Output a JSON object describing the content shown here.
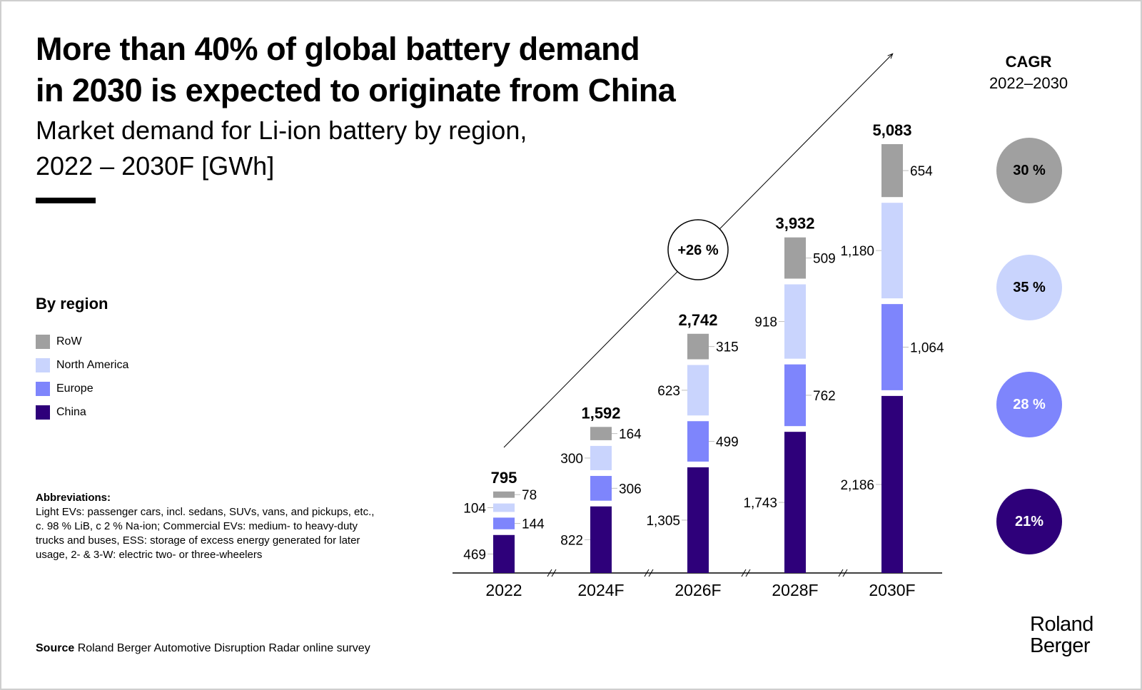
{
  "title_lines": [
    "More than 40% of global battery demand",
    "in 2030 is expected to originate from China"
  ],
  "subtitle_lines": [
    "Market demand for Li-ion battery by region,",
    "2022 – 2030F [GWh]"
  ],
  "legend": {
    "title": "By region",
    "items": [
      {
        "label": "RoW",
        "color": "#a0a0a0"
      },
      {
        "label": "North America",
        "color": "#c9d4fd"
      },
      {
        "label": "Europe",
        "color": "#7e85fc"
      },
      {
        "label": "China",
        "color": "#2e007a"
      }
    ]
  },
  "abbreviations": {
    "title": "Abbreviations:",
    "text": "Light EVs: passenger cars, incl. sedans, SUVs, vans, and pickups, etc., c. 98 % LiB, c 2 % Na-ion; Commercial EVs: medium- to heavy-duty trucks and buses, ESS: storage of excess energy generated for later usage, 2- & 3-W: electric two- or three-wheelers"
  },
  "source": {
    "label": "Source",
    "text": "Roland Berger Automotive Disruption Radar online survey"
  },
  "logo": {
    "line1": "Roland",
    "line2": "Berger"
  },
  "cagr": {
    "title": "CAGR",
    "period": "2022–2030",
    "items": [
      {
        "region": "RoW",
        "value": "30 %",
        "color": "#a0a0a0",
        "text_color": "#000000"
      },
      {
        "region": "North America",
        "value": "35 %",
        "color": "#c9d4fd",
        "text_color": "#000000"
      },
      {
        "region": "Europe",
        "value": "28 %",
        "color": "#7e85fc",
        "text_color": "#ffffff"
      },
      {
        "region": "China",
        "value": "21%",
        "color": "#2e007a",
        "text_color": "#ffffff"
      }
    ]
  },
  "chart_data": {
    "type": "bar",
    "stacked": true,
    "title": "Market demand for Li-ion battery by region, 2022 – 2030F [GWh]",
    "xlabel": "",
    "ylabel": "GWh",
    "categories": [
      "2022",
      "2024F",
      "2026F",
      "2028F",
      "2030F"
    ],
    "series": [
      {
        "name": "China",
        "color": "#2e007a",
        "values": [
          469,
          822,
          1305,
          1743,
          2186
        ],
        "labels": [
          "469",
          "822",
          "1,305",
          "1,743",
          "2,186"
        ],
        "label_side": "left"
      },
      {
        "name": "Europe",
        "color": "#7e85fc",
        "values": [
          144,
          306,
          499,
          762,
          1064
        ],
        "labels": [
          "144",
          "306",
          "499",
          "762",
          "1,064"
        ],
        "label_side": "right"
      },
      {
        "name": "North America",
        "color": "#c9d4fd",
        "values": [
          104,
          300,
          623,
          918,
          1180
        ],
        "labels": [
          "104",
          "300",
          "623",
          "918",
          "1,180"
        ],
        "label_side": "left"
      },
      {
        "name": "RoW",
        "color": "#a0a0a0",
        "values": [
          78,
          164,
          315,
          509,
          654
        ],
        "labels": [
          "78",
          "164",
          "315",
          "509",
          "654"
        ],
        "label_side": "right"
      }
    ],
    "totals": [
      795,
      1592,
      2742,
      3932,
      5083
    ],
    "total_labels": [
      "795",
      "1,592",
      "2,742",
      "3,932",
      "5,083"
    ],
    "growth_annotation": "+26 %",
    "axis_breaks": true,
    "grid": false,
    "legend_position": "left"
  }
}
